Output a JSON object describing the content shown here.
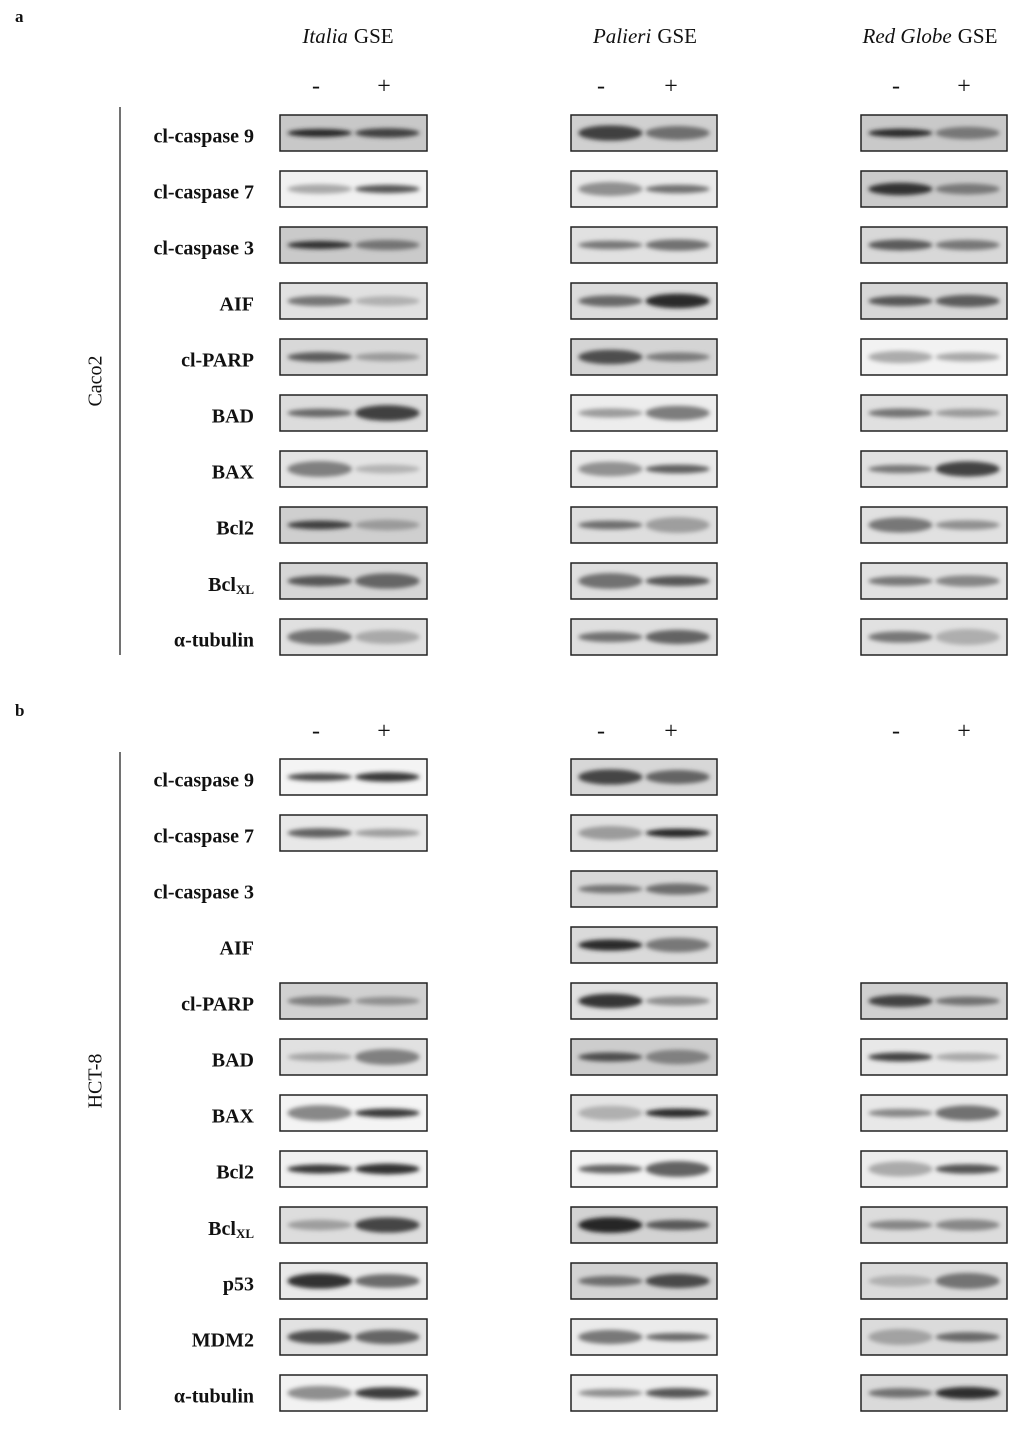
{
  "panels": [
    {
      "letter": "a",
      "cell_line": "Caco2",
      "columns": [
        {
          "name": "Italia",
          "suffix": "GSE"
        },
        {
          "name": "Palieri",
          "suffix": "GSE"
        },
        {
          "name": "Red Globe",
          "suffix": "GSE"
        }
      ],
      "treatments": [
        "-",
        "+"
      ],
      "rows": [
        "cl-caspase 9",
        "cl-caspase 7",
        "cl-caspase 3",
        "AIF",
        "cl-PARP",
        "BAD",
        "BAX",
        "Bcl2",
        {
          "text": "Bcl",
          "sub": "XL"
        },
        "α-tubulin"
      ]
    },
    {
      "letter": "b",
      "cell_line": "HCT-8",
      "treatments": [
        "-",
        "+"
      ],
      "rows": [
        "cl-caspase 9",
        "cl-caspase 7",
        "cl-caspase 3",
        "AIF",
        "cl-PARP",
        "BAD",
        "BAX",
        "Bcl2",
        {
          "text": "Bcl",
          "sub": "XL"
        },
        "p53",
        "MDM2",
        "α-tubulin"
      ]
    }
  ]
}
